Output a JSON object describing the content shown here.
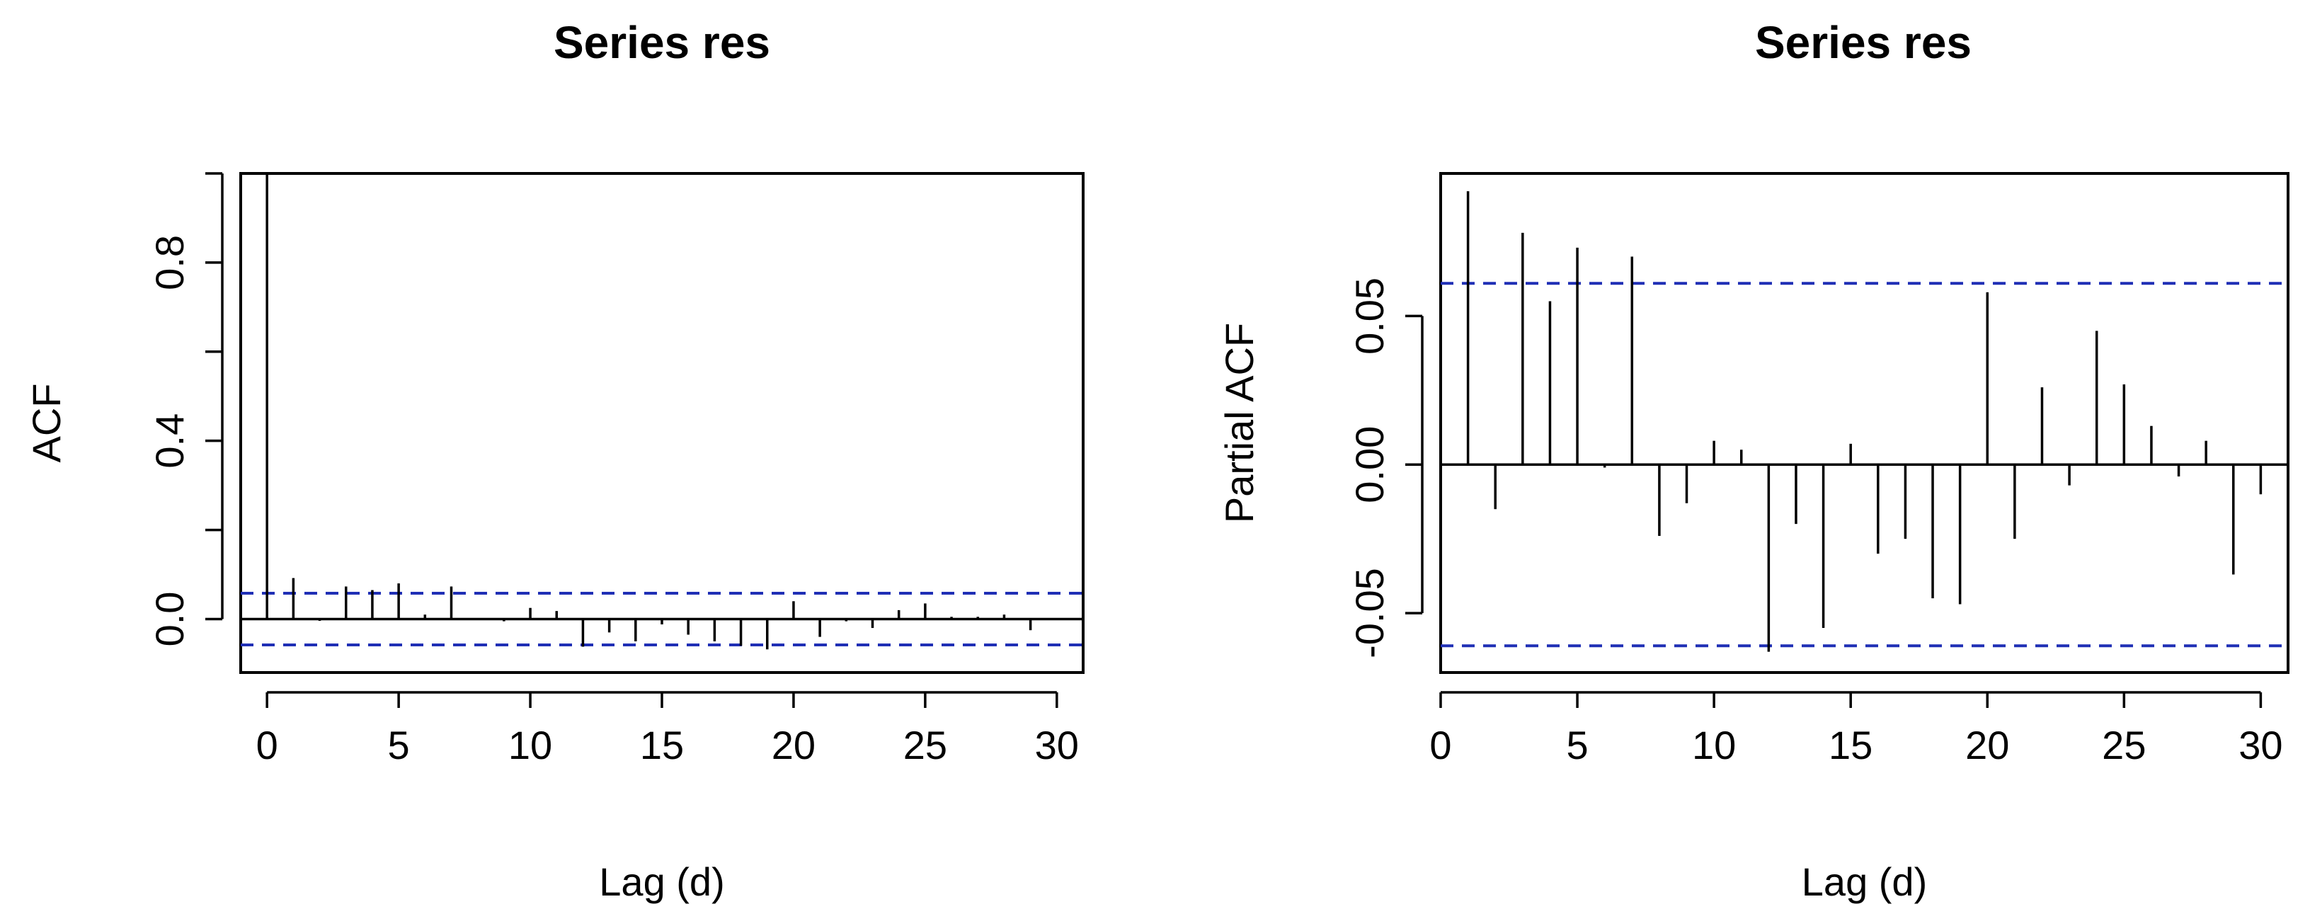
{
  "chart_data": [
    {
      "type": "bar",
      "title": "Series  res",
      "xlabel": "Lag (d)",
      "ylabel": "ACF",
      "xlim": [
        -1,
        31
      ],
      "ylim": [
        -0.12,
        1.0
      ],
      "x_ticks": [
        0,
        5,
        10,
        15,
        20,
        25,
        30
      ],
      "y_ticks": [
        0.0,
        0.2,
        0.4,
        0.6,
        0.8,
        1.0
      ],
      "y_tick_labels": [
        "0.0",
        "",
        "0.4",
        "",
        "0.8",
        ""
      ],
      "ci": [
        0.058,
        -0.058
      ],
      "ci_color": "#1f2fb5",
      "lags": [
        0,
        1,
        2,
        3,
        4,
        5,
        6,
        7,
        8,
        9,
        10,
        11,
        12,
        13,
        14,
        15,
        16,
        17,
        18,
        19,
        20,
        21,
        22,
        23,
        24,
        25,
        26,
        27,
        28,
        29
      ],
      "values": [
        1.0,
        0.092,
        -0.004,
        0.073,
        0.065,
        0.08,
        0.01,
        0.073,
        -0.001,
        -0.005,
        0.025,
        0.018,
        -0.062,
        -0.03,
        -0.05,
        -0.012,
        -0.035,
        -0.05,
        -0.06,
        -0.068,
        0.04,
        -0.04,
        -0.005,
        -0.02,
        0.02,
        0.035,
        0.005,
        0.005,
        0.01,
        -0.025
      ]
    },
    {
      "type": "bar",
      "title": "Series  res",
      "xlabel": "Lag (d)",
      "ylabel": "Partial ACF",
      "xlim": [
        0,
        31
      ],
      "ylim": [
        -0.07,
        0.098
      ],
      "x_ticks": [
        0,
        5,
        10,
        15,
        20,
        25,
        30
      ],
      "y_ticks": [
        -0.05,
        0.0,
        0.05
      ],
      "y_tick_labels": [
        "-0.05",
        "0.00",
        "0.05"
      ],
      "ci": [
        0.061,
        -0.061
      ],
      "ci_color": "#1f2fb5",
      "lags": [
        1,
        2,
        3,
        4,
        5,
        6,
        7,
        8,
        9,
        10,
        11,
        12,
        13,
        14,
        15,
        16,
        17,
        18,
        19,
        20,
        21,
        22,
        23,
        24,
        25,
        26,
        27,
        28,
        29,
        30
      ],
      "values": [
        0.092,
        -0.015,
        0.078,
        0.055,
        0.073,
        -0.001,
        0.07,
        -0.024,
        -0.013,
        0.008,
        0.005,
        -0.063,
        -0.02,
        -0.055,
        0.007,
        -0.03,
        -0.025,
        -0.045,
        -0.047,
        0.058,
        -0.025,
        0.026,
        -0.007,
        0.045,
        0.027,
        0.013,
        -0.004,
        0.008,
        -0.037,
        -0.01
      ]
    }
  ]
}
